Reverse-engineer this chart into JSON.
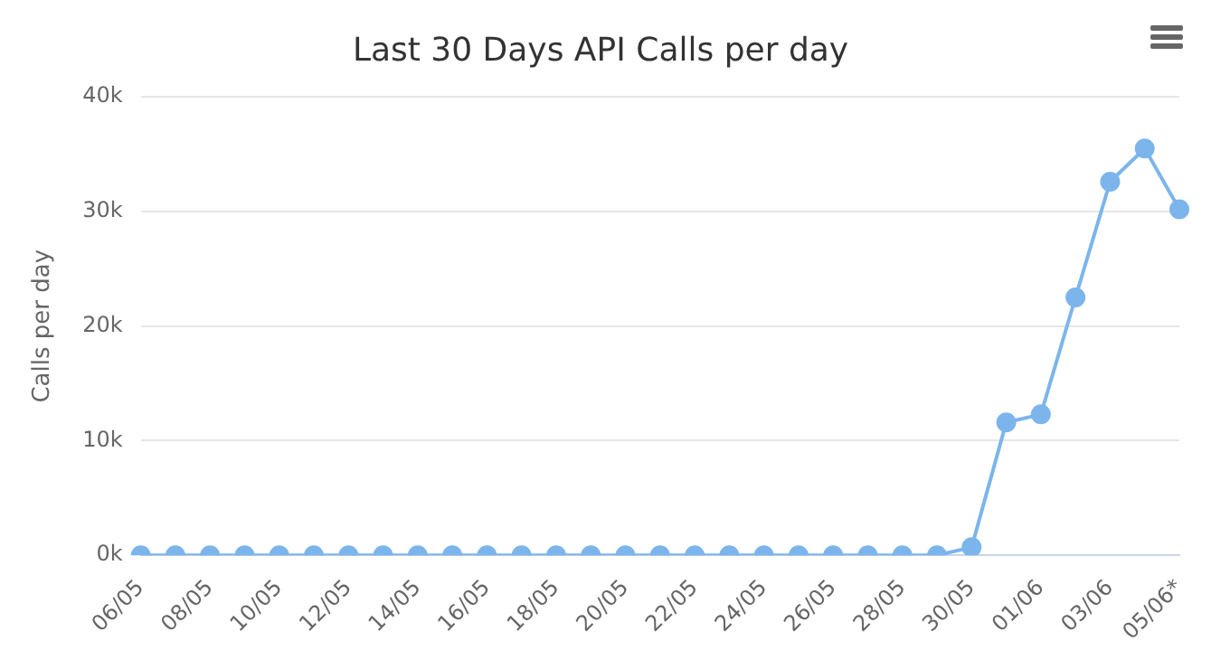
{
  "chart_data": {
    "type": "line",
    "title": "Last 30 Days API Calls per day",
    "ylabel": "Calls per day",
    "categories": [
      "06/05",
      null,
      "08/05",
      null,
      "10/05",
      null,
      "12/05",
      null,
      "14/05",
      null,
      "16/05",
      null,
      "18/05",
      null,
      "20/05",
      null,
      "22/05",
      null,
      "24/05",
      null,
      "26/05",
      null,
      "28/05",
      null,
      "30/05",
      null,
      "01/06",
      null,
      "03/06",
      null,
      "05/06*"
    ],
    "series": [
      {
        "color": "#7cb5ec",
        "values": [
          0,
          0,
          0,
          0,
          0,
          0,
          0,
          0,
          0,
          0,
          0,
          0,
          0,
          0,
          0,
          0,
          0,
          0,
          0,
          0,
          0,
          0,
          0,
          0,
          700,
          11600,
          12300,
          22500,
          32600,
          35500,
          30200
        ]
      }
    ],
    "ylim": [
      0,
      40000
    ],
    "yticks": [
      {
        "value": 0,
        "label": "0k"
      },
      {
        "value": 10000,
        "label": "10k"
      },
      {
        "value": 20000,
        "label": "20k"
      },
      {
        "value": 30000,
        "label": "30k"
      },
      {
        "value": 40000,
        "label": "40k"
      }
    ],
    "grid": "y",
    "legend": false,
    "marker": "circle",
    "line_style": "solid"
  }
}
